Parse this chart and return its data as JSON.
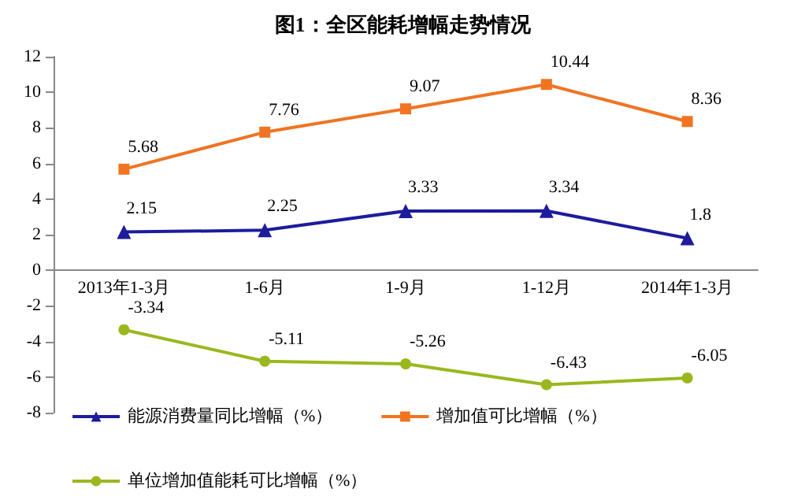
{
  "chart_data": {
    "type": "line",
    "title": "图1：全区能耗增幅走势情况",
    "categories": [
      "2013年1-3月",
      "1-6月",
      "1-9月",
      "1-12月",
      "2014年1-3月"
    ],
    "series": [
      {
        "name": "能源消费量同比增幅（%）",
        "color": "#1c1c9c",
        "marker": "triangle",
        "values": [
          2.15,
          2.25,
          3.33,
          3.34,
          1.8
        ]
      },
      {
        "name": "增加值可比增幅（%）",
        "color": "#f07422",
        "marker": "square",
        "values": [
          5.68,
          7.76,
          9.07,
          10.44,
          8.36
        ]
      },
      {
        "name": "单位增加值能耗可比增幅（%）",
        "color": "#99b81e",
        "marker": "circle",
        "values": [
          -3.34,
          -5.11,
          -5.26,
          -6.43,
          -6.05
        ]
      }
    ],
    "ylim": [
      -8,
      12
    ],
    "yticks": [
      -8,
      -6,
      -4,
      -2,
      0,
      2,
      4,
      6,
      8,
      10,
      12
    ],
    "legend": "bottom",
    "data_labels": true
  }
}
